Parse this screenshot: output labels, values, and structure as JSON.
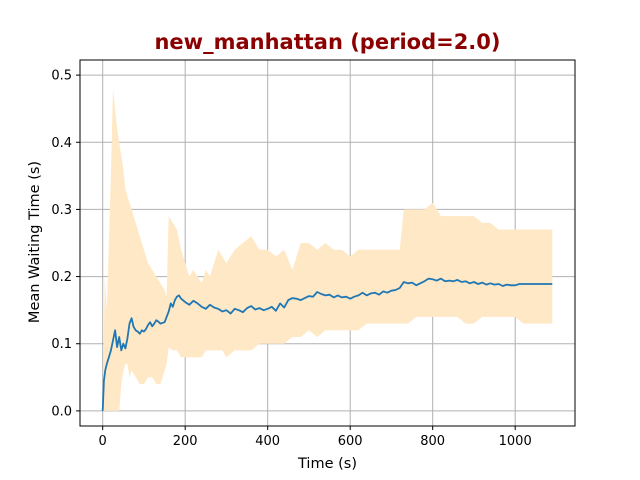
{
  "colors": {
    "title": "#8b0000",
    "line": "#1f77b4",
    "band": "#ffe8c5"
  },
  "chart_data": {
    "type": "line",
    "title": "new_manhattan (period=2.0)",
    "xlabel": "Time (s)",
    "ylabel": "Mean Waiting Time (s)",
    "xlim": [
      -55,
      1145
    ],
    "ylim": [
      -0.0225,
      0.5225
    ],
    "grid": true,
    "x_ticks": [
      0,
      200,
      400,
      600,
      800,
      1000
    ],
    "x_tick_labels": [
      "0",
      "200",
      "400",
      "600",
      "800",
      "1000"
    ],
    "y_ticks": [
      0.0,
      0.1,
      0.2,
      0.3,
      0.4,
      0.5
    ],
    "y_tick_labels": [
      "0.0",
      "0.1",
      "0.2",
      "0.3",
      "0.4",
      "0.5"
    ],
    "series": [
      {
        "kind": "line",
        "x": [
          0,
          3,
          6,
          10,
          15,
          20,
          25,
          30,
          35,
          40,
          45,
          50,
          55,
          60,
          65,
          70,
          75,
          80,
          85,
          90,
          95,
          100,
          105,
          110,
          115,
          120,
          125,
          130,
          135,
          140,
          150,
          160,
          165,
          170,
          175,
          180,
          185,
          190,
          200,
          210,
          220,
          230,
          240,
          250,
          260,
          270,
          280,
          290,
          300,
          310,
          320,
          330,
          340,
          350,
          360,
          370,
          380,
          390,
          400,
          410,
          420,
          430,
          440,
          450,
          460,
          470,
          480,
          490,
          500,
          510,
          520,
          530,
          540,
          550,
          560,
          570,
          580,
          590,
          600,
          610,
          620,
          630,
          640,
          650,
          660,
          670,
          680,
          690,
          700,
          710,
          720,
          730,
          740,
          750,
          760,
          770,
          780,
          790,
          800,
          810,
          820,
          830,
          840,
          850,
          860,
          870,
          880,
          890,
          900,
          910,
          920,
          930,
          940,
          950,
          960,
          970,
          980,
          990,
          1000,
          1010,
          1020,
          1090
        ],
        "y": [
          0.0,
          0.045,
          0.06,
          0.07,
          0.08,
          0.09,
          0.105,
          0.12,
          0.095,
          0.11,
          0.09,
          0.1,
          0.093,
          0.108,
          0.13,
          0.138,
          0.125,
          0.12,
          0.118,
          0.115,
          0.12,
          0.118,
          0.122,
          0.128,
          0.132,
          0.126,
          0.13,
          0.135,
          0.133,
          0.13,
          0.132,
          0.148,
          0.16,
          0.155,
          0.165,
          0.17,
          0.172,
          0.167,
          0.162,
          0.158,
          0.164,
          0.16,
          0.155,
          0.152,
          0.158,
          0.154,
          0.152,
          0.148,
          0.15,
          0.145,
          0.152,
          0.15,
          0.147,
          0.153,
          0.156,
          0.151,
          0.153,
          0.15,
          0.152,
          0.155,
          0.149,
          0.16,
          0.154,
          0.165,
          0.168,
          0.167,
          0.165,
          0.168,
          0.171,
          0.17,
          0.177,
          0.174,
          0.172,
          0.173,
          0.169,
          0.172,
          0.169,
          0.17,
          0.167,
          0.17,
          0.172,
          0.176,
          0.172,
          0.175,
          0.176,
          0.173,
          0.178,
          0.176,
          0.179,
          0.18,
          0.183,
          0.192,
          0.19,
          0.191,
          0.187,
          0.19,
          0.193,
          0.197,
          0.196,
          0.194,
          0.197,
          0.193,
          0.194,
          0.193,
          0.195,
          0.192,
          0.193,
          0.19,
          0.192,
          0.189,
          0.191,
          0.188,
          0.19,
          0.188,
          0.189,
          0.186,
          0.188,
          0.187,
          0.187,
          0.189,
          0.189,
          0.189
        ]
      },
      {
        "kind": "band",
        "x": [
          0,
          5,
          10,
          20,
          25,
          30,
          35,
          40,
          45,
          50,
          55,
          60,
          65,
          70,
          80,
          90,
          100,
          110,
          120,
          130,
          140,
          150,
          155,
          160,
          170,
          180,
          190,
          200,
          210,
          220,
          230,
          240,
          250,
          260,
          270,
          280,
          290,
          300,
          320,
          340,
          360,
          380,
          400,
          420,
          440,
          460,
          480,
          500,
          520,
          540,
          560,
          580,
          600,
          620,
          640,
          660,
          680,
          700,
          720,
          730,
          740,
          760,
          780,
          800,
          810,
          820,
          840,
          860,
          880,
          900,
          920,
          940,
          960,
          980,
          1000,
          1020,
          1050,
          1090
        ],
        "lower": [
          0.0,
          0.0,
          0.0,
          0.0,
          0.0,
          0.0,
          0.0,
          0.0,
          0.04,
          0.06,
          0.07,
          0.07,
          0.05,
          0.06,
          0.05,
          0.04,
          0.04,
          0.05,
          0.05,
          0.04,
          0.04,
          0.06,
          0.07,
          0.095,
          0.09,
          0.09,
          0.08,
          0.08,
          0.08,
          0.08,
          0.08,
          0.08,
          0.09,
          0.09,
          0.09,
          0.09,
          0.09,
          0.08,
          0.09,
          0.09,
          0.09,
          0.1,
          0.1,
          0.1,
          0.1,
          0.11,
          0.11,
          0.12,
          0.11,
          0.12,
          0.12,
          0.12,
          0.12,
          0.12,
          0.13,
          0.13,
          0.13,
          0.13,
          0.13,
          0.13,
          0.13,
          0.14,
          0.14,
          0.14,
          0.14,
          0.14,
          0.14,
          0.14,
          0.13,
          0.13,
          0.14,
          0.14,
          0.14,
          0.14,
          0.14,
          0.13,
          0.13,
          0.13
        ],
        "upper": [
          0.0,
          0.2,
          0.15,
          0.35,
          0.48,
          0.45,
          0.42,
          0.4,
          0.38,
          0.36,
          0.33,
          0.32,
          0.31,
          0.3,
          0.28,
          0.26,
          0.24,
          0.22,
          0.21,
          0.2,
          0.19,
          0.18,
          0.17,
          0.29,
          0.28,
          0.27,
          0.24,
          0.22,
          0.2,
          0.21,
          0.2,
          0.19,
          0.21,
          0.2,
          0.22,
          0.24,
          0.23,
          0.22,
          0.24,
          0.25,
          0.26,
          0.24,
          0.24,
          0.23,
          0.24,
          0.21,
          0.25,
          0.25,
          0.24,
          0.25,
          0.24,
          0.24,
          0.23,
          0.24,
          0.24,
          0.24,
          0.24,
          0.24,
          0.24,
          0.3,
          0.3,
          0.3,
          0.3,
          0.31,
          0.3,
          0.29,
          0.29,
          0.29,
          0.29,
          0.29,
          0.28,
          0.28,
          0.27,
          0.27,
          0.27,
          0.27,
          0.27,
          0.27
        ]
      }
    ]
  }
}
